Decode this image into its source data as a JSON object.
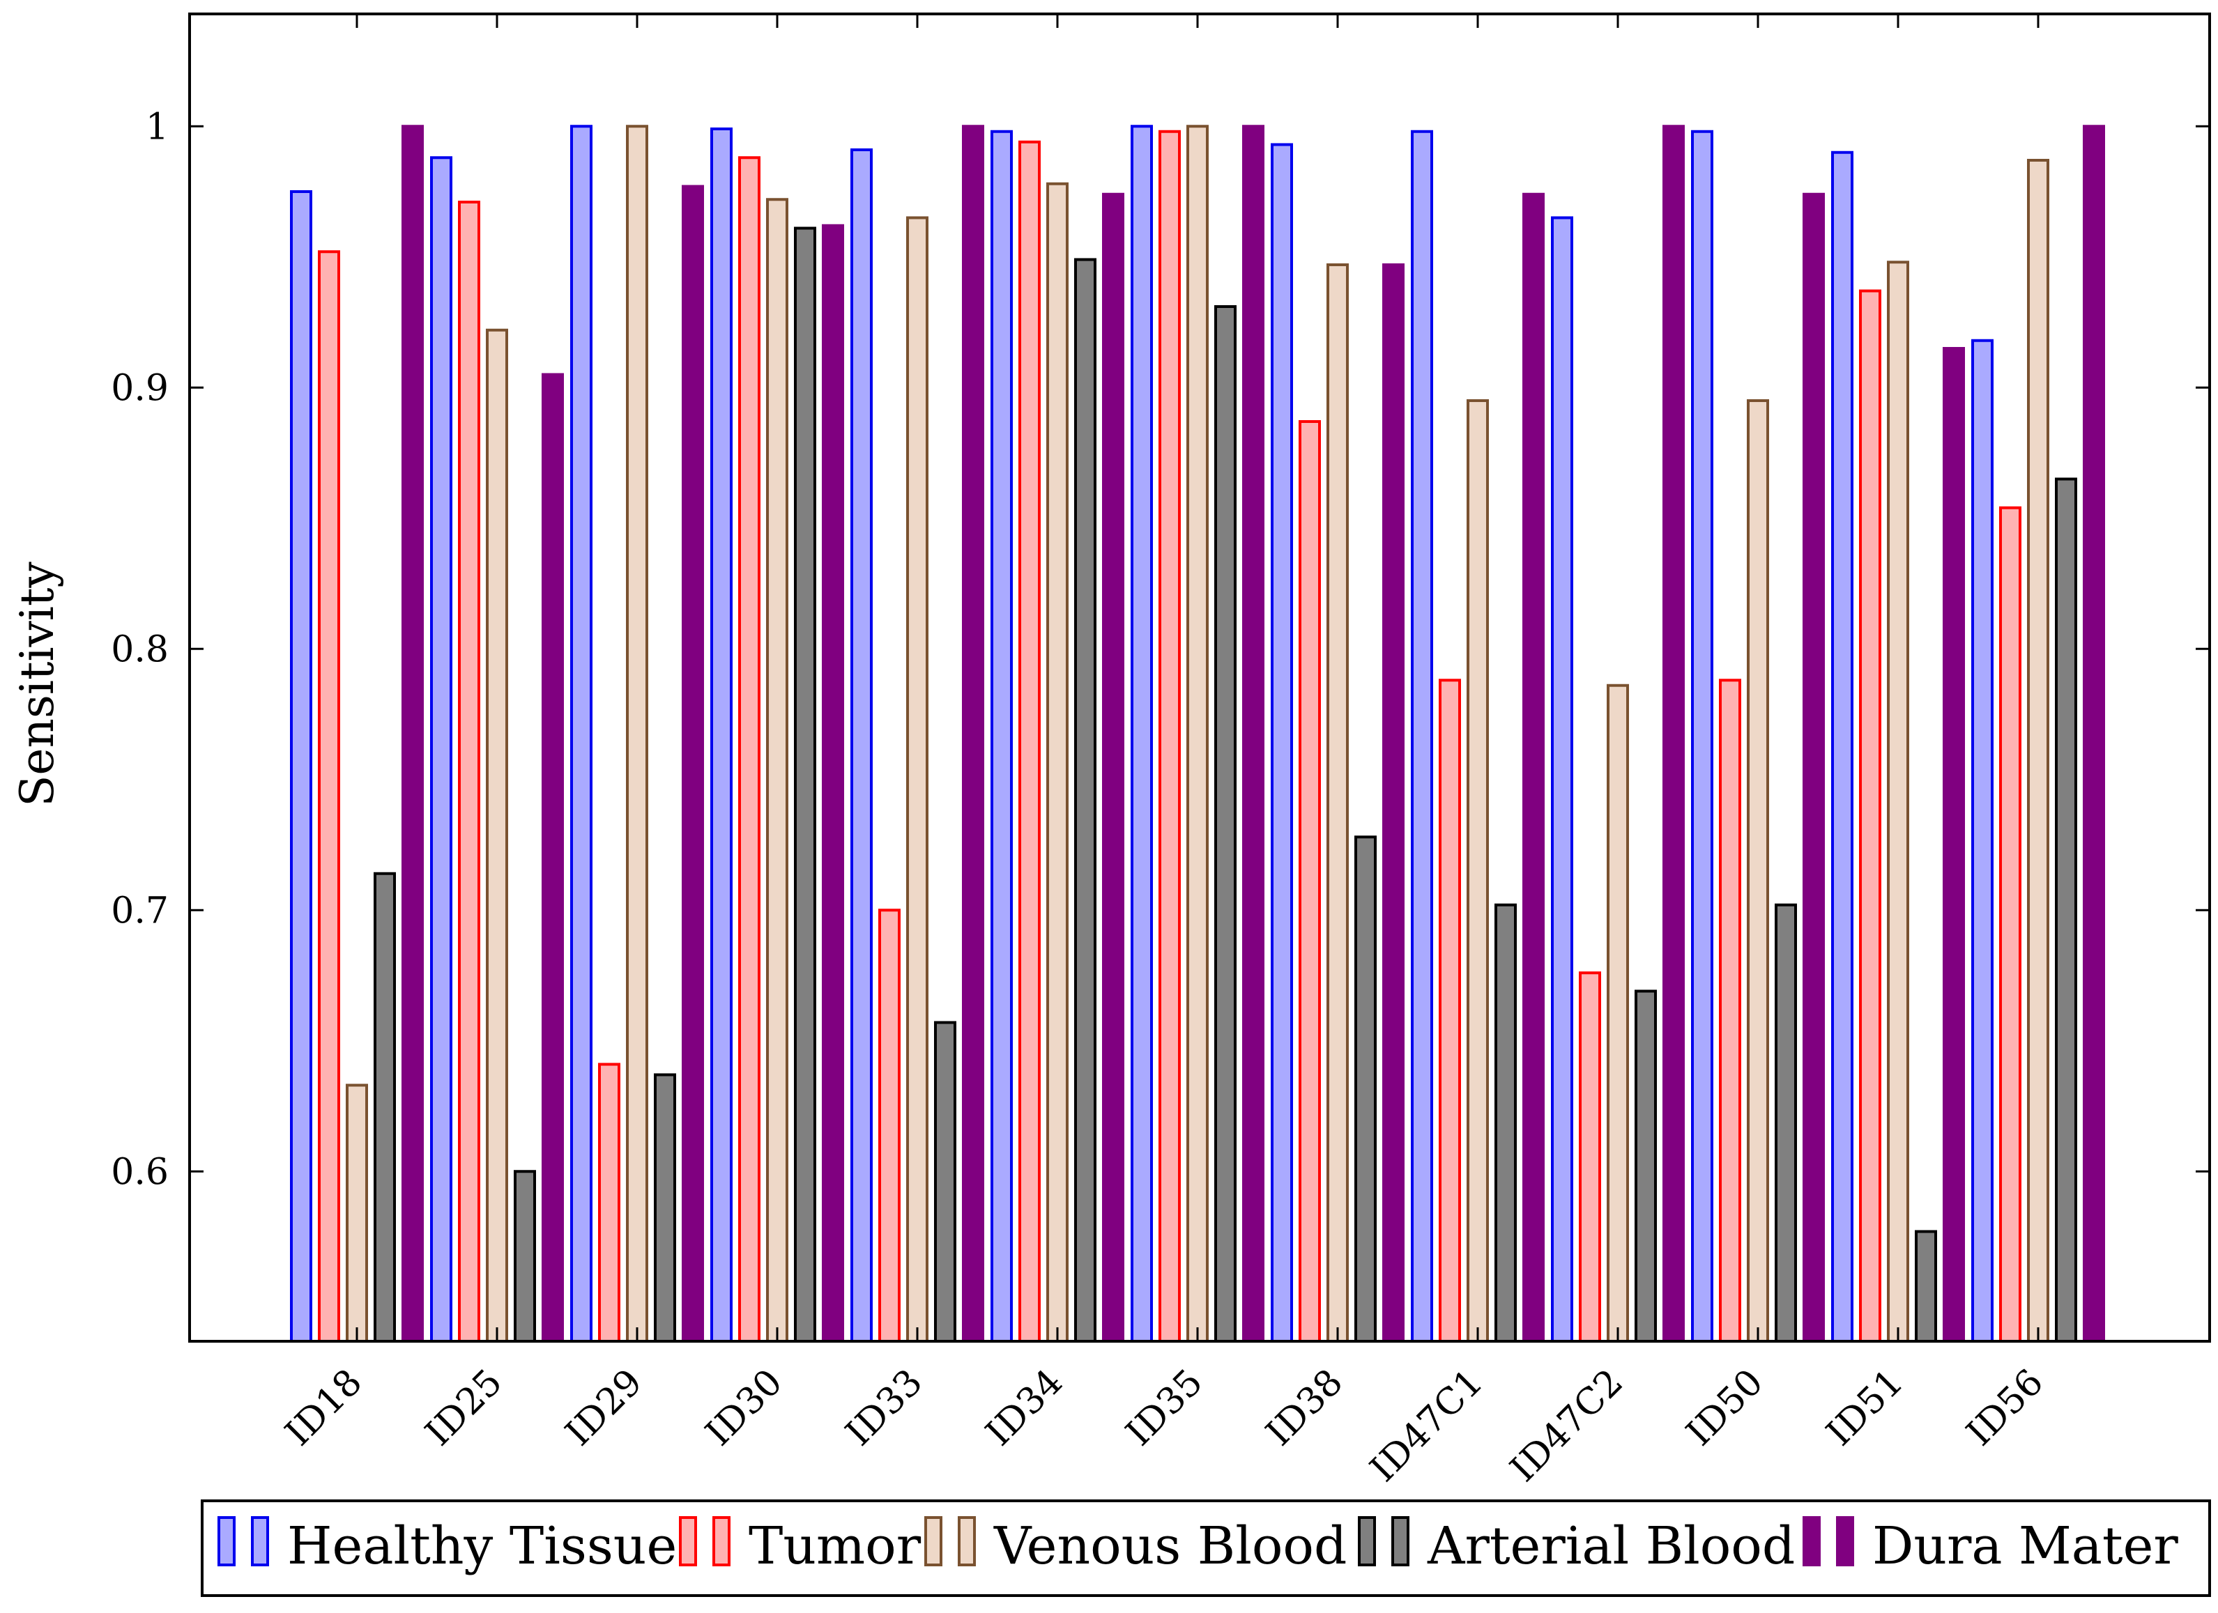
{
  "chart_data": {
    "type": "bar",
    "title": "",
    "xlabel": "",
    "ylabel": "Sensitivity",
    "ylim": [
      0.535,
      1.043
    ],
    "yticks": [
      0.6,
      0.7,
      0.8,
      0.9,
      1
    ],
    "ytick_labels": [
      "0.6",
      "0.7",
      "0.8",
      "0.9",
      "1"
    ],
    "grid": false,
    "legend_position": "bottom",
    "categories": [
      "ID18",
      "ID25",
      "ID29",
      "ID30",
      "ID33",
      "ID34",
      "ID35",
      "ID38",
      "ID47C1",
      "ID47C2",
      "ID50",
      "ID51",
      "ID56"
    ],
    "series": [
      {
        "name": "Healthy Tissue",
        "fill": "#aaaaff",
        "stroke": "#0000ee",
        "values": [
          0.975,
          0.988,
          1.0,
          0.999,
          0.991,
          0.998,
          1.0,
          0.993,
          0.998,
          0.965,
          0.998,
          0.99,
          0.918
        ]
      },
      {
        "name": "Tumor",
        "fill": "#ffb2b2",
        "stroke": "#ff0000",
        "values": [
          0.952,
          0.971,
          0.641,
          0.988,
          0.7,
          0.994,
          0.998,
          0.887,
          0.788,
          0.676,
          0.788,
          0.937,
          0.854
        ]
      },
      {
        "name": "Venous Blood",
        "fill": "#eed8c8",
        "stroke": "#7a5230",
        "values": [
          0.633,
          0.922,
          1.0,
          0.972,
          0.965,
          0.978,
          1.0,
          0.947,
          0.895,
          0.786,
          0.895,
          0.948,
          0.987
        ]
      },
      {
        "name": "Arterial Blood",
        "fill": "#808080",
        "stroke": "#000000",
        "values": [
          0.714,
          0.6,
          0.637,
          0.961,
          0.657,
          0.949,
          0.931,
          0.728,
          0.702,
          0.669,
          0.702,
          0.577,
          0.865
        ]
      },
      {
        "name": "Dura Mater",
        "fill": "#800080",
        "stroke": "#800080",
        "values": [
          1.0,
          0.905,
          0.977,
          0.962,
          1.0,
          0.974,
          1.0,
          0.947,
          0.974,
          1.0,
          0.974,
          0.915,
          1.0
        ]
      }
    ]
  }
}
